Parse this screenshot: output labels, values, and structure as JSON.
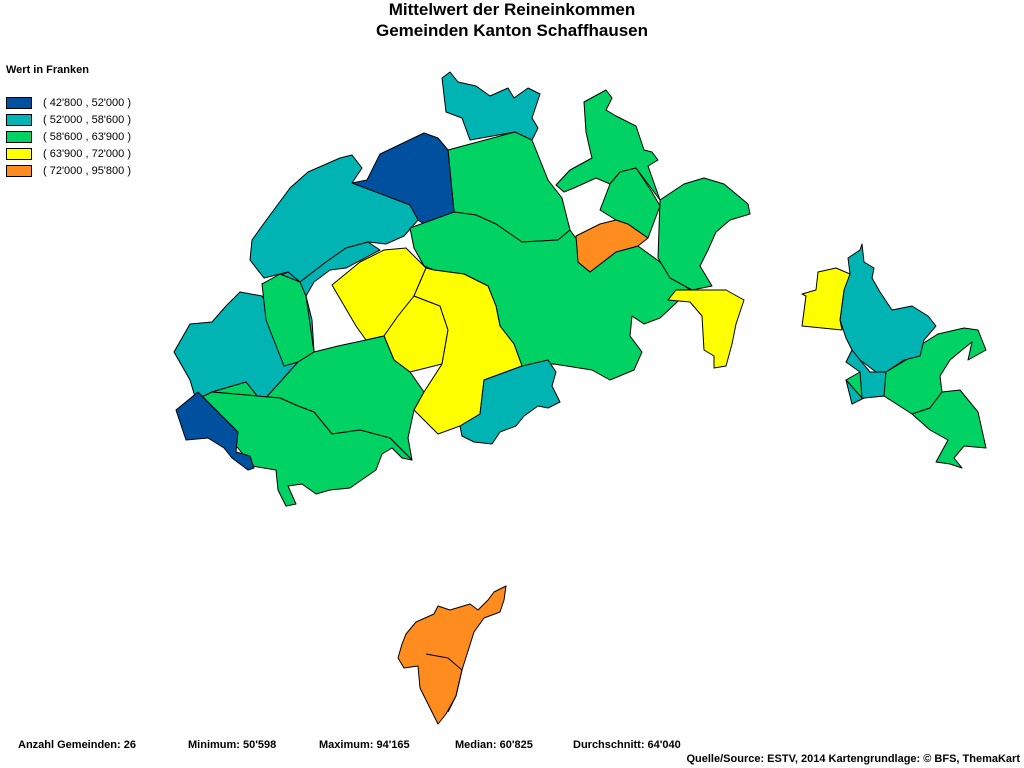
{
  "title_line1": "Mittelwert der Reineinkommen",
  "title_line2": "Gemeinden Kanton Schaffhausen",
  "legend": {
    "title": "Wert in Franken",
    "items": [
      {
        "label": "( 42'800 , 52'000 )",
        "color": "#0050a0"
      },
      {
        "label": "( 52'000 , 58'600 )",
        "color": "#00b4b4"
      },
      {
        "label": "( 58'600 , 63'900 )",
        "color": "#00d264"
      },
      {
        "label": "( 63'900 , 72'000 )",
        "color": "#ffff00"
      },
      {
        "label": "( 72'000 , 95'800 )",
        "color": "#ff8c1e"
      }
    ]
  },
  "stats": {
    "count": "Anzahl Gemeinden: 26",
    "min": "Minimum: 50'598",
    "max": "Maximum: 94'165",
    "median": "Median: 60'825",
    "mean": "Durchschnitt: 64'040"
  },
  "source": "Quelle/Source: ESTV, 2014 Kartengrundlage: © BFS, ThemaKart",
  "municipality_classes": [
    2,
    1,
    0,
    2,
    1,
    1,
    1,
    2,
    3,
    3,
    2,
    2,
    2,
    3,
    4,
    2,
    3,
    1,
    2,
    0,
    2,
    1,
    3,
    1,
    2,
    4
  ]
}
